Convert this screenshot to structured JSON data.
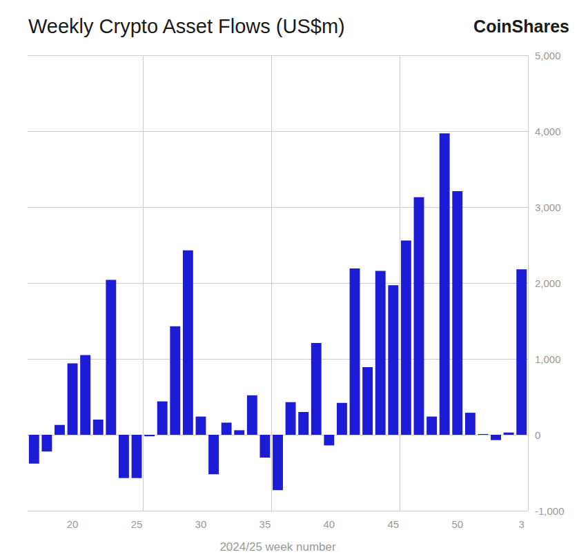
{
  "chart_data": {
    "type": "bar",
    "title": "Weekly Crypto Asset Flows (US$m)",
    "brand": "CoinShares",
    "x_label": "2024/25 week number",
    "categories": [
      null,
      null,
      null,
      "20",
      null,
      null,
      null,
      null,
      "25",
      null,
      null,
      null,
      null,
      "30",
      null,
      null,
      null,
      null,
      "35",
      null,
      null,
      null,
      null,
      "40",
      null,
      null,
      null,
      null,
      "45",
      null,
      null,
      null,
      null,
      "50",
      null,
      null,
      null,
      null,
      "3"
    ],
    "values": [
      -380,
      -220,
      130,
      940,
      1050,
      200,
      2040,
      -570,
      -570,
      -20,
      440,
      1430,
      2430,
      240,
      -520,
      160,
      60,
      520,
      -300,
      -730,
      430,
      300,
      1210,
      -140,
      420,
      2190,
      890,
      2160,
      1970,
      2560,
      3130,
      240,
      3970,
      3210,
      290,
      10,
      -70,
      30,
      2180
    ],
    "color": "#1c1cd6",
    "ylim": [
      -1000,
      5000
    ],
    "yticks": [
      {
        "value": -1000,
        "label": "-1,000"
      },
      0,
      {
        "value": 1000,
        "label": "1,000"
      },
      {
        "value": 2000,
        "label": "2,000"
      },
      {
        "value": 3000,
        "label": "3,000"
      },
      {
        "value": 4000,
        "label": "4,000"
      },
      {
        "value": 5000,
        "label": "5,000"
      }
    ],
    "grid": true
  }
}
